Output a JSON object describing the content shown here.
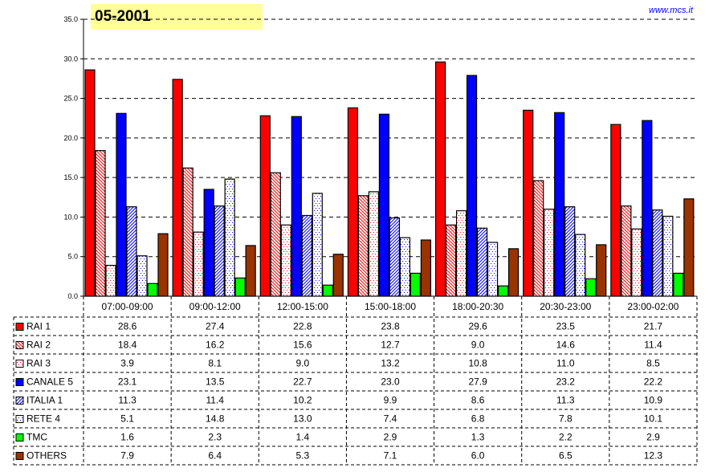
{
  "title": "05-2001",
  "site": "www.mcs.it",
  "chart_data": {
    "type": "bar",
    "title": "05-2001",
    "categories": [
      "07:00-09:00",
      "09:00-12:00",
      "12:00-15:00",
      "15:00-18:00",
      "18:00-20:30",
      "20:30-23:00",
      "23:00-02:00"
    ],
    "ylim": [
      0,
      35
    ],
    "yticks": [
      "0.0",
      "5.0",
      "10.0",
      "15.0",
      "20.0",
      "25.0",
      "30.0",
      "35.0"
    ],
    "grid": true,
    "legend": "data-table-bottom",
    "series": [
      {
        "name": "RAI 1",
        "color": "#ff0000",
        "pattern": "solid",
        "values": [
          28.6,
          27.4,
          22.8,
          23.8,
          29.6,
          23.5,
          21.7
        ]
      },
      {
        "name": "RAI 2",
        "color": "#ff0000",
        "pattern": "diagonal-hatch",
        "values": [
          18.4,
          16.2,
          15.6,
          12.7,
          9.0,
          14.6,
          11.4
        ]
      },
      {
        "name": "RAI 3",
        "color": "#ff0000",
        "pattern": "dots",
        "values": [
          3.9,
          8.1,
          9.0,
          13.2,
          10.8,
          11.0,
          8.5
        ]
      },
      {
        "name": "CANALE 5",
        "color": "#0000ff",
        "pattern": "solid",
        "values": [
          23.1,
          13.5,
          22.7,
          23.0,
          27.9,
          23.2,
          22.2
        ]
      },
      {
        "name": "ITALIA 1",
        "color": "#0000ff",
        "pattern": "diagonal-hatch-reverse",
        "values": [
          11.3,
          11.4,
          10.2,
          9.9,
          8.6,
          11.3,
          10.9
        ]
      },
      {
        "name": "RETE 4",
        "color": "#0000ff",
        "pattern": "dots",
        "values": [
          5.1,
          14.8,
          13.0,
          7.4,
          6.8,
          7.8,
          10.1
        ]
      },
      {
        "name": "TMC",
        "color": "#00ff00",
        "pattern": "solid",
        "values": [
          1.6,
          2.3,
          1.4,
          2.9,
          1.3,
          2.2,
          2.9
        ]
      },
      {
        "name": "OTHERS",
        "color": "#993300",
        "pattern": "solid",
        "values": [
          7.9,
          6.4,
          5.3,
          7.1,
          6.0,
          6.5,
          12.3
        ]
      }
    ]
  }
}
